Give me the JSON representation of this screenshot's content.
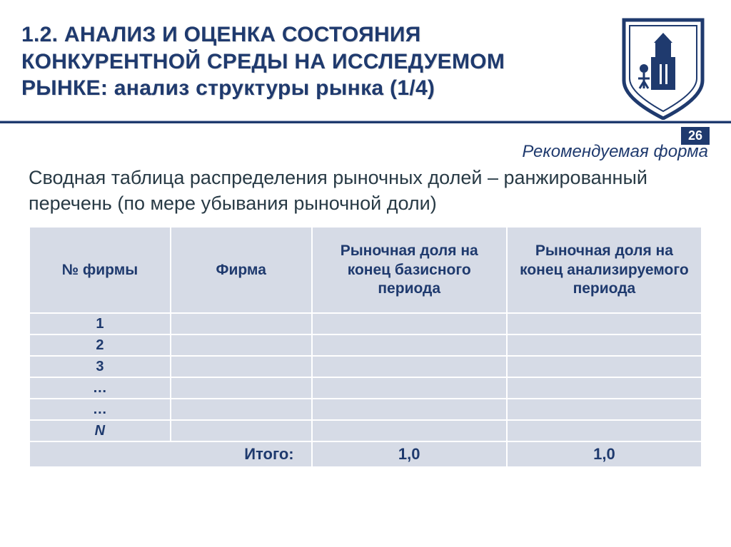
{
  "title_lines": [
    "1.2. АНАЛИЗ И ОЦЕНКА СОСТОЯНИЯ",
    "КОНКУРЕНТНОЙ СРЕДЫ НА ИССЛЕДУЕМОМ",
    "РЫНКЕ: анализ структуры рынка (1/4)"
  ],
  "page_number": "26",
  "form_note": "Рекомендуемая форма",
  "intro_text": "Сводная таблица распределения рыночных долей – ранжированный перечень (по мере убывания рыночной доли)",
  "table": {
    "columns": [
      "№ фирмы",
      "Фирма",
      "Рыночная доля на конец базисного периода",
      "Рыночная доля на конец анализируемого периода"
    ],
    "col_widths_pct": [
      21,
      21,
      29,
      29
    ],
    "rows": [
      {
        "num": "1",
        "italic": false
      },
      {
        "num": "2",
        "italic": false
      },
      {
        "num": "3",
        "italic": false
      },
      {
        "num": "…",
        "italic": false
      },
      {
        "num": "…",
        "italic": false
      },
      {
        "num": "N",
        "italic": true
      }
    ],
    "total_label": "Итого:",
    "total_values": [
      "1,0",
      "1,0"
    ]
  },
  "colors": {
    "accent": "#1f3a6e",
    "cell_bg": "#d6dbe6",
    "text_dark": "#283a45"
  }
}
